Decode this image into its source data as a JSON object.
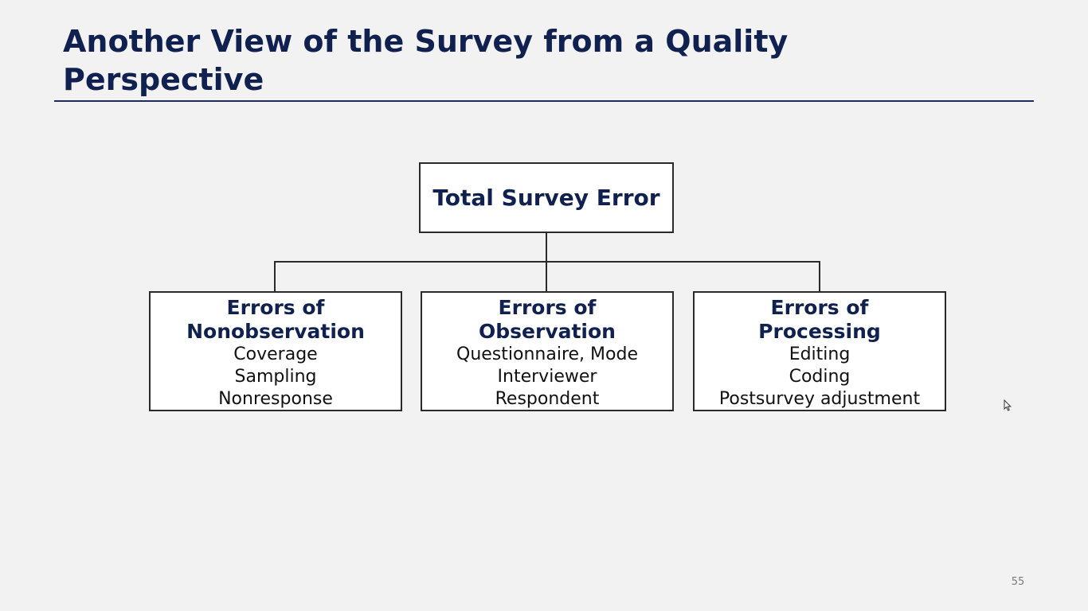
{
  "slide": {
    "title_line1": "Another View of the Survey from a Quality",
    "title_line2": "Perspective",
    "page_number": "55"
  },
  "diagram": {
    "root": {
      "label": "Total Survey Error"
    },
    "children": [
      {
        "title_line1": "Errors of",
        "title_line2": "Nonobservation",
        "items": [
          "Coverage",
          "Sampling",
          "Nonresponse"
        ]
      },
      {
        "title_line1": "Errors of",
        "title_line2": "Observation",
        "items": [
          "Questionnaire, Mode",
          "Interviewer",
          "Respondent"
        ]
      },
      {
        "title_line1": "Errors of",
        "title_line2": "Processing",
        "items": [
          "Editing",
          "Coding",
          "Postsurvey adjustment"
        ]
      }
    ]
  },
  "colors": {
    "title": "#102150",
    "background": "#f2f2f2",
    "box_border": "#2a2a2a"
  },
  "icons": {
    "cursor": "mouse-pointer-icon"
  }
}
